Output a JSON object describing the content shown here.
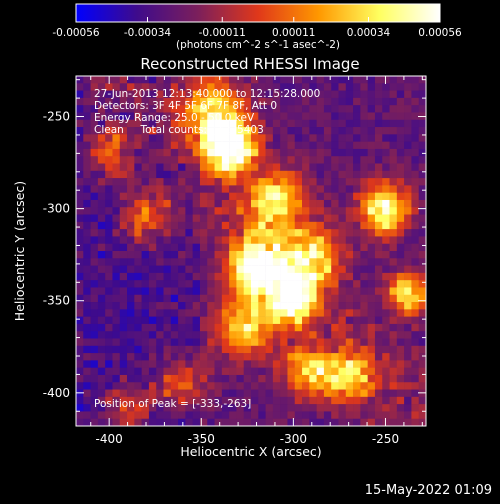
{
  "chart_data": {
    "type": "heatmap",
    "title": "Reconstructed RHESSI Image",
    "xlabel": "Heliocentric X (arcsec)",
    "ylabel": "Heliocentric Y (arcsec)",
    "xlim": [
      -418,
      -228
    ],
    "ylim": [
      -418,
      -228
    ],
    "x_ticks": [
      -400,
      -350,
      -300,
      -250
    ],
    "y_ticks": [
      -400,
      -350,
      -300,
      -250
    ],
    "colorbar": {
      "min": -0.00056,
      "max": 0.00056,
      "ticks": [
        "-0.00056",
        "-0.00034",
        "-0.00011",
        "0.00011",
        "0.00034",
        "0.00056"
      ],
      "tick_values": [
        -0.00056,
        -0.00034,
        -0.00011,
        0.00011,
        0.00034,
        0.00056
      ],
      "unit_label": "(photons cm^-2 s^-1 asec^-2)",
      "colors": [
        "#0000ff",
        "#3e0b8c",
        "#7b1f5c",
        "#e0381a",
        "#ff9800",
        "#ffff60",
        "#ffffff"
      ]
    },
    "info_lines": [
      "27-Jun-2013 12:13:40.000 to 12:15:28.000",
      "Detectors: 3F 4F 5F 6F 7F 8F, Att 0",
      "Energy Range: 25.0 - 50.0 keV",
      "Clean     Total counts:   1225403"
    ],
    "peak_label": "Position of Peak = [-333,-263]",
    "peak_position": [
      -333,
      -263
    ],
    "grid": false
  },
  "footer": {
    "timestamp": "15-May-2022 01:09"
  }
}
